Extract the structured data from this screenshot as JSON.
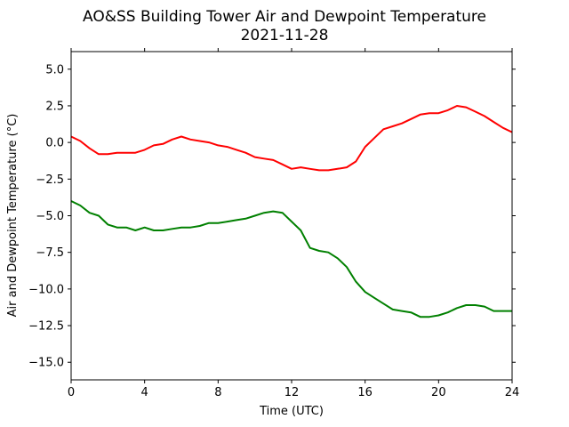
{
  "chart_data": {
    "type": "line",
    "title": "AO&SS Building Tower Air and Dewpoint Temperature",
    "subtitle": "2021-11-28",
    "xlabel": "Time (UTC)",
    "ylabel": "Air and Dewpoint Temperature (°C)",
    "xlim": [
      0,
      24
    ],
    "ylim": [
      -16.2,
      6.2
    ],
    "xticks": [
      0,
      4,
      8,
      12,
      16,
      20,
      24
    ],
    "yticks": [
      5.0,
      2.5,
      0.0,
      -2.5,
      -5.0,
      -7.5,
      -10.0,
      -12.5,
      -15.0
    ],
    "xtick_labels": [
      "0",
      "4",
      "8",
      "12",
      "16",
      "20",
      "24"
    ],
    "ytick_labels": [
      "5.0",
      "2.5",
      "0.0",
      "−2.5",
      "−5.0",
      "−7.5",
      "−10.0",
      "−12.5",
      "−15.0"
    ],
    "grid": false,
    "series": [
      {
        "color": "#ff0000",
        "x": [
          0,
          0.5,
          1,
          1.5,
          2,
          2.5,
          3,
          3.5,
          4,
          4.5,
          5,
          5.5,
          6,
          6.5,
          7,
          7.5,
          8,
          8.5,
          9,
          9.5,
          10,
          10.5,
          11,
          11.5,
          12,
          12.5,
          13,
          13.5,
          14,
          14.5,
          15,
          15.5,
          16,
          16.5,
          17,
          17.5,
          18,
          18.5,
          19,
          19.5,
          20,
          20.5,
          21,
          21.5,
          22,
          22.5,
          23,
          23.5,
          24
        ],
        "y": [
          0.4,
          0.1,
          -0.4,
          -0.8,
          -0.8,
          -0.7,
          -0.7,
          -0.7,
          -0.5,
          -0.2,
          -0.1,
          0.2,
          0.4,
          0.2,
          0.1,
          0.0,
          -0.2,
          -0.3,
          -0.5,
          -0.7,
          -1.0,
          -1.1,
          -1.2,
          -1.5,
          -1.8,
          -1.7,
          -1.8,
          -1.9,
          -1.9,
          -1.8,
          -1.7,
          -1.3,
          -0.3,
          0.3,
          0.9,
          1.1,
          1.3,
          1.6,
          1.9,
          2.0,
          2.0,
          2.2,
          2.5,
          2.4,
          2.1,
          1.8,
          1.4,
          1.0,
          0.7
        ]
      },
      {
        "color": "#008000",
        "x": [
          0,
          0.5,
          1,
          1.5,
          2,
          2.5,
          3,
          3.5,
          4,
          4.5,
          5,
          5.5,
          6,
          6.5,
          7,
          7.5,
          8,
          8.5,
          9,
          9.5,
          10,
          10.5,
          11,
          11.5,
          12,
          12.5,
          13,
          13.5,
          14,
          14.5,
          15,
          15.5,
          16,
          16.5,
          17,
          17.5,
          18,
          18.5,
          19,
          19.5,
          20,
          20.5,
          21,
          21.5,
          22,
          22.5,
          23,
          23.5,
          24
        ],
        "y": [
          -4.0,
          -4.3,
          -4.8,
          -5.0,
          -5.6,
          -5.8,
          -5.8,
          -6.0,
          -5.8,
          -6.0,
          -6.0,
          -5.9,
          -5.8,
          -5.8,
          -5.7,
          -5.5,
          -5.5,
          -5.4,
          -5.3,
          -5.2,
          -5.0,
          -4.8,
          -4.7,
          -4.8,
          -5.4,
          -6.0,
          -7.2,
          -7.4,
          -7.5,
          -7.9,
          -8.5,
          -9.5,
          -10.2,
          -10.6,
          -11.0,
          -11.4,
          -11.5,
          -11.6,
          -11.9,
          -11.9,
          -11.8,
          -11.6,
          -11.3,
          -11.1,
          -11.1,
          -11.2,
          -11.5,
          -11.5,
          -11.5
        ]
      }
    ]
  }
}
